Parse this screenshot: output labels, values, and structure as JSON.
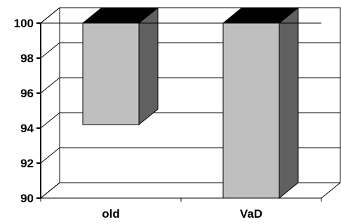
{
  "chart_data": {
    "type": "bar",
    "style": "3d",
    "categories": [
      "old",
      "VaD"
    ],
    "values": [
      94.2,
      90
    ],
    "bar_tops": [
      100,
      100
    ],
    "ylim": [
      90,
      100
    ],
    "yticks": [
      "90",
      "92",
      "94",
      "96",
      "98",
      "100"
    ],
    "title": "",
    "xlabel": "",
    "ylabel": "",
    "grid": true,
    "legend": "none",
    "colors": {
      "front": "#bfbfbf",
      "side": "#606060",
      "top": "#000000",
      "grid": "#000000"
    }
  }
}
